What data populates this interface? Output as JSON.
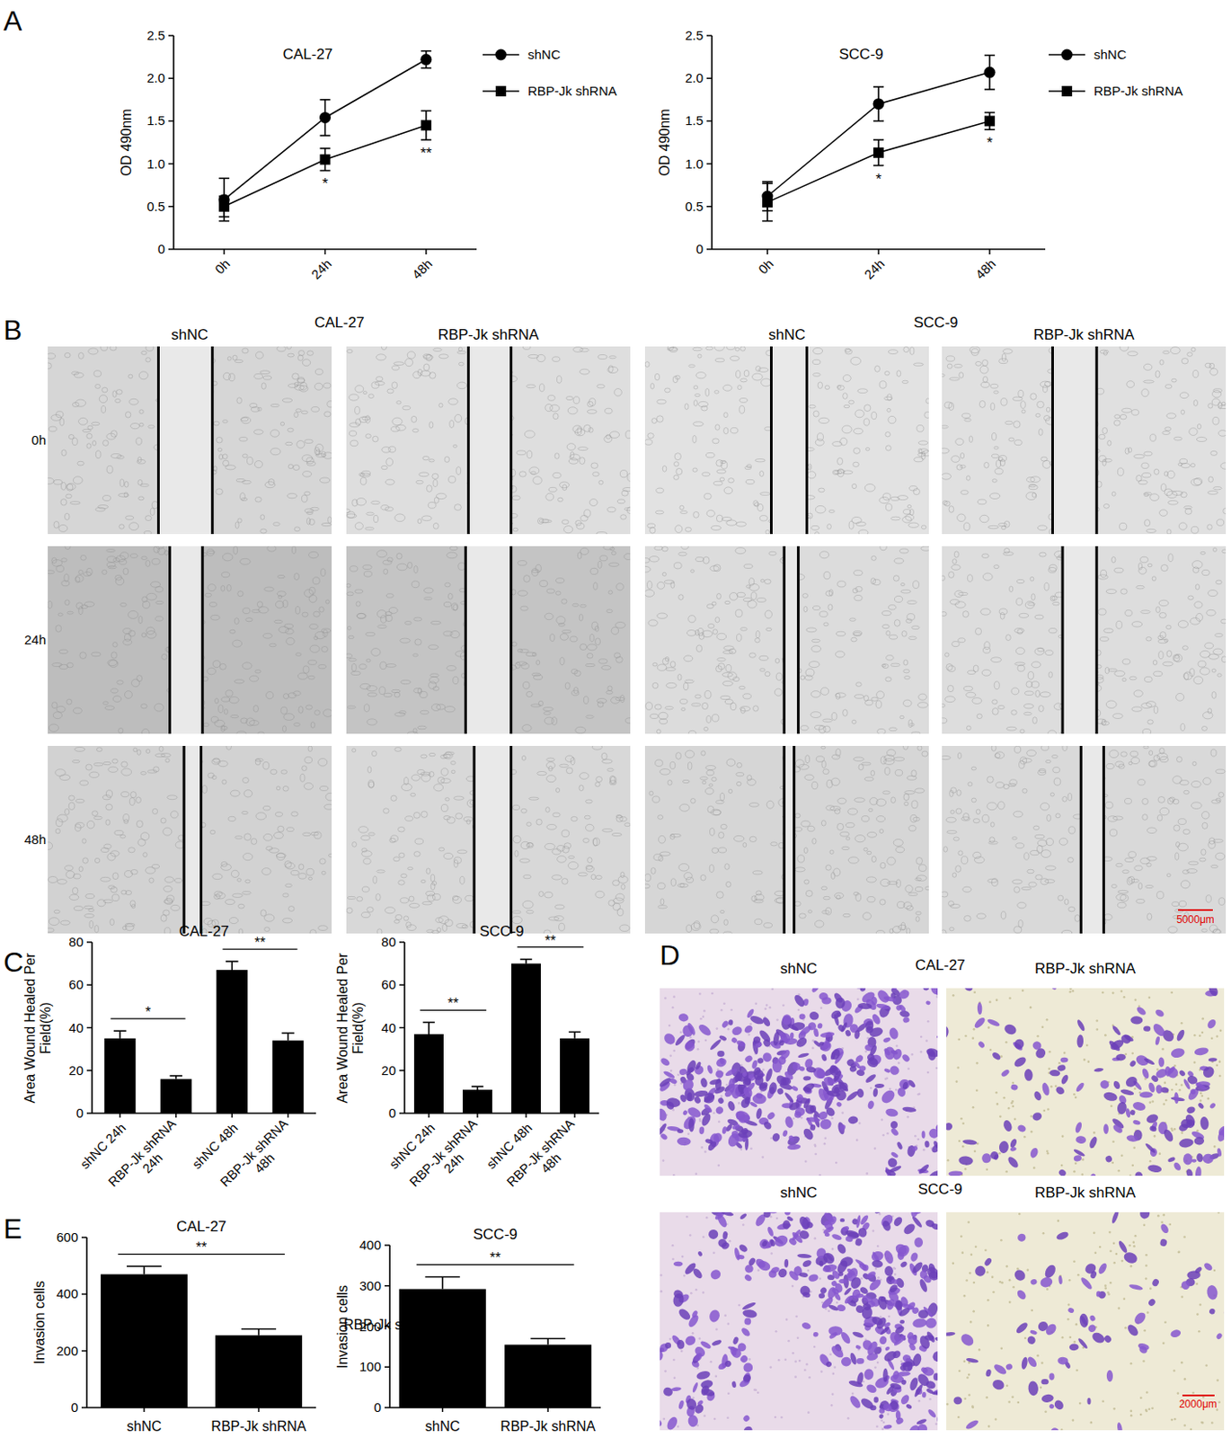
{
  "panel_labels": [
    "A",
    "B",
    "C",
    "D",
    "E"
  ],
  "chart_data": [
    {
      "type": "line",
      "title": "CAL-27",
      "y_label": "OD 490nm",
      "categories": [
        "0h",
        "24h",
        "48h"
      ],
      "series": [
        {
          "name": "shNC",
          "color": "#000000",
          "marker": "circle",
          "values": [
            0.58,
            1.54,
            2.22
          ],
          "errors": [
            0.25,
            0.21,
            0.1
          ]
        },
        {
          "name": "RBP-Jk shRNA",
          "color": "#000000",
          "marker": "square",
          "values": [
            0.5,
            1.05,
            1.45
          ],
          "errors": [
            0.12,
            0.13,
            0.17
          ]
        }
      ],
      "ylim": [
        0,
        2.5
      ],
      "yticks": [
        0,
        0.5,
        {
          "value": 1,
          "label": "1.0"
        },
        1.5,
        {
          "value": 2,
          "label": "2.0"
        },
        2.5
      ],
      "legend": "right",
      "annotations": [
        null,
        "*",
        "**"
      ]
    },
    {
      "type": "line",
      "title": "SCC-9",
      "y_label": "OD 490nm",
      "categories": [
        "0h",
        "24h",
        "48h"
      ],
      "series": [
        {
          "name": "shNC",
          "color": "#000000",
          "marker": "circle",
          "values": [
            0.62,
            1.7,
            2.07
          ],
          "errors": [
            0.17,
            0.2,
            0.2
          ]
        },
        {
          "name": "RBP-Jk shRNA",
          "color": "#000000",
          "marker": "square",
          "values": [
            0.55,
            1.13,
            1.5
          ],
          "errors": [
            0.22,
            0.15,
            0.1
          ]
        }
      ],
      "ylim": [
        0,
        2.5
      ],
      "yticks": [
        0,
        0.5,
        {
          "value": 1,
          "label": "1.0"
        },
        1.5,
        {
          "value": 2,
          "label": "2.0"
        },
        2.5
      ],
      "legend": "right",
      "annotations": [
        null,
        "*",
        "*"
      ]
    },
    {
      "type": "bar",
      "title": "CAL-27",
      "y_label": "Area Wound Healed Per Field(%)",
      "categories": [
        "shNC 24h",
        "RBP-Jk shRNA 24h",
        "shNC 48h",
        "RBP-Jk shRNA 48h"
      ],
      "values": [
        35,
        16,
        67,
        34
      ],
      "errors": [
        3.5,
        1.5,
        4,
        3.5
      ],
      "color": "#000000",
      "ylim": [
        0,
        80
      ],
      "yticks": [
        0,
        20,
        40,
        60,
        80
      ],
      "significance": [
        "*",
        "**"
      ]
    },
    {
      "type": "bar",
      "title": "SCC-9",
      "y_label": "Area Wound Healed Per Field(%)",
      "categories": [
        "shNC 24h",
        "RBP-Jk shRNA 24h",
        "shNC 48h",
        "RBP-Jk shRNA 48h"
      ],
      "values": [
        37,
        11,
        70,
        35
      ],
      "errors": [
        5.5,
        1.5,
        2,
        3
      ],
      "color": "#000000",
      "ylim": [
        0,
        80
      ],
      "yticks": [
        0,
        20,
        40,
        60,
        80
      ],
      "significance": [
        "**",
        "**"
      ]
    },
    {
      "type": "bar",
      "title": "CAL-27",
      "y_label": "Invasion cells",
      "categories": [
        "shNC",
        "RBP-Jk shRNA"
      ],
      "values": [
        470,
        255
      ],
      "errors": [
        28,
        22
      ],
      "color": "#000000",
      "ylim": [
        0,
        600
      ],
      "yticks": [
        0,
        200,
        400,
        600
      ],
      "significance": [
        "**"
      ]
    },
    {
      "type": "bar",
      "title": "SCC-9",
      "y_label": "Invasion cells",
      "categories": [
        "shNC",
        "RBP-Jk shRNA"
      ],
      "values": [
        292,
        155
      ],
      "errors": [
        30,
        15
      ],
      "color": "#000000",
      "ylim": [
        0,
        400
      ],
      "yticks": [
        0,
        100,
        200,
        300,
        400
      ],
      "significance": [
        "**"
      ]
    }
  ],
  "images": {
    "wound_healing": {
      "groups": [
        "CAL-27",
        "SCC-9"
      ],
      "columns": [
        "shNC",
        "RBP-Jk shRNA",
        "shNC",
        "RBP-Jk shRNA"
      ],
      "rows": [
        "0h",
        "24h",
        "48h"
      ],
      "scale_bar": "5000μm"
    },
    "transwell": {
      "groups": [
        "CAL-27",
        "SCC-9"
      ],
      "columns": [
        "shNC",
        "RBP-Jk shRNA"
      ],
      "scale_bar": "2000μm"
    }
  },
  "stray_text": "RBP-Jk s"
}
